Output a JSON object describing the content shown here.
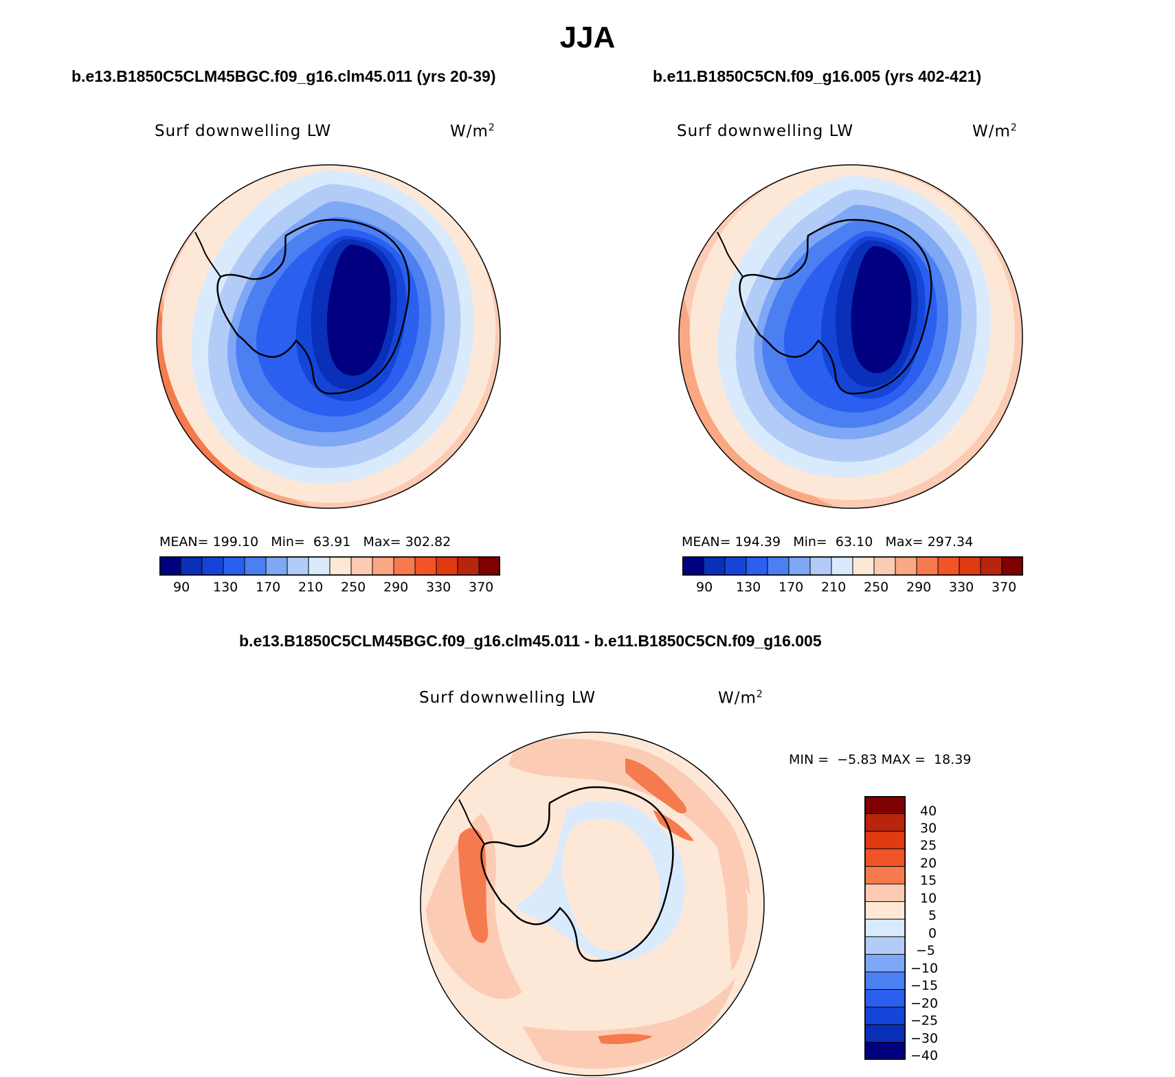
{
  "figure_title": "JJA",
  "colors": {
    "scale": [
      "#000080",
      "#0a2fb8",
      "#1545d8",
      "#2a5ff0",
      "#4c7ff2",
      "#7ea7f5",
      "#b3ccf7",
      "#d9eafc",
      "#fde8d8",
      "#fccbb4",
      "#f9a883",
      "#f57a4e",
      "#f05427",
      "#e03a10",
      "#b8250d",
      "#7f0000"
    ],
    "diff_scale": [
      "#000080",
      "#0a2fb8",
      "#1545d8",
      "#2a5ff0",
      "#4c7ff2",
      "#7ea7f5",
      "#b3ccf7",
      "#d9eafc",
      "#fde8d8",
      "#fccbb4",
      "#f57a4e",
      "#f05427",
      "#e03a10",
      "#b8250d",
      "#7f0000"
    ],
    "land": "#ffffff"
  },
  "panels": {
    "left": {
      "case_title": "b.e13.B1850C5CLM45BGC.f09_g16.clm45.011 (yrs 20-39)",
      "field": "Surf downwelling LW",
      "units_base": "W/m",
      "units_exp": "2",
      "mean_label": "MEAN=",
      "mean_value": "199.10",
      "min_label": "Min=",
      "min_value": "63.91",
      "max_label": "Max=",
      "max_value": "302.82"
    },
    "right": {
      "case_title": "b.e11.B1850C5CN.f09_g16.005 (yrs 402-421)",
      "field": "Surf downwelling LW",
      "units_base": "W/m",
      "units_exp": "2",
      "mean_label": "MEAN=",
      "mean_value": "194.39",
      "min_label": "Min=",
      "min_value": "63.10",
      "max_label": "Max=",
      "max_value": "297.34"
    },
    "diff": {
      "case_title": "b.e13.B1850C5CLM45BGC.f09_g16.clm45.011 - b.e11.B1850C5CN.f09_g16.005",
      "field": "Surf downwelling LW",
      "units_base": "W/m",
      "units_exp": "2",
      "min_label": "MIN =",
      "min_value": "−5.83",
      "max_label": "MAX =",
      "max_value": "18.39"
    }
  },
  "colorbar_ticks": [
    "90",
    "130",
    "170",
    "210",
    "250",
    "290",
    "330",
    "370"
  ],
  "diff_colorbar_ticks": [
    "40",
    "30",
    "25",
    "20",
    "15",
    "10",
    "5",
    "0",
    "−5",
    "−10",
    "−15",
    "−20",
    "−25",
    "−30",
    "−40"
  ]
}
